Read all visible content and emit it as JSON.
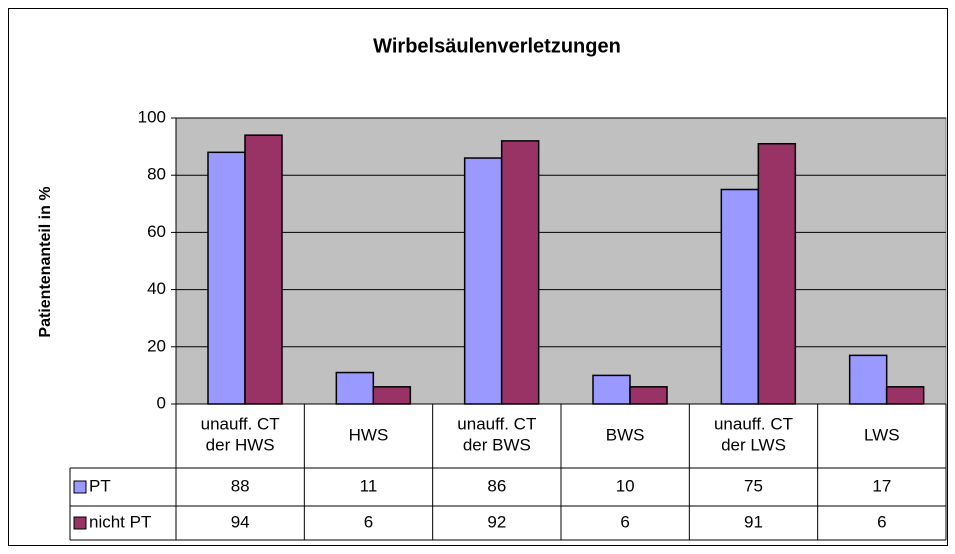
{
  "chart_data": {
    "type": "bar",
    "title": "Wirbelsäulenverletzungen",
    "y_label": "Patientenanteil in %",
    "categories": [
      "unauff. CT der HWS",
      "HWS",
      "unauff. CT der BWS",
      "BWS",
      "unauff. CT der LWS",
      "LWS"
    ],
    "series": [
      {
        "name": "PT",
        "color": "#9999ff",
        "values": [
          88,
          11,
          86,
          10,
          75,
          17
        ]
      },
      {
        "name": "nicht PT",
        "color": "#993366",
        "values": [
          94,
          6,
          92,
          6,
          91,
          6
        ]
      }
    ],
    "ylim": [
      0,
      100
    ],
    "yticks": [
      0,
      20,
      40,
      60,
      80,
      100
    ],
    "grid": true,
    "plot_background": "#c0c0c0"
  }
}
